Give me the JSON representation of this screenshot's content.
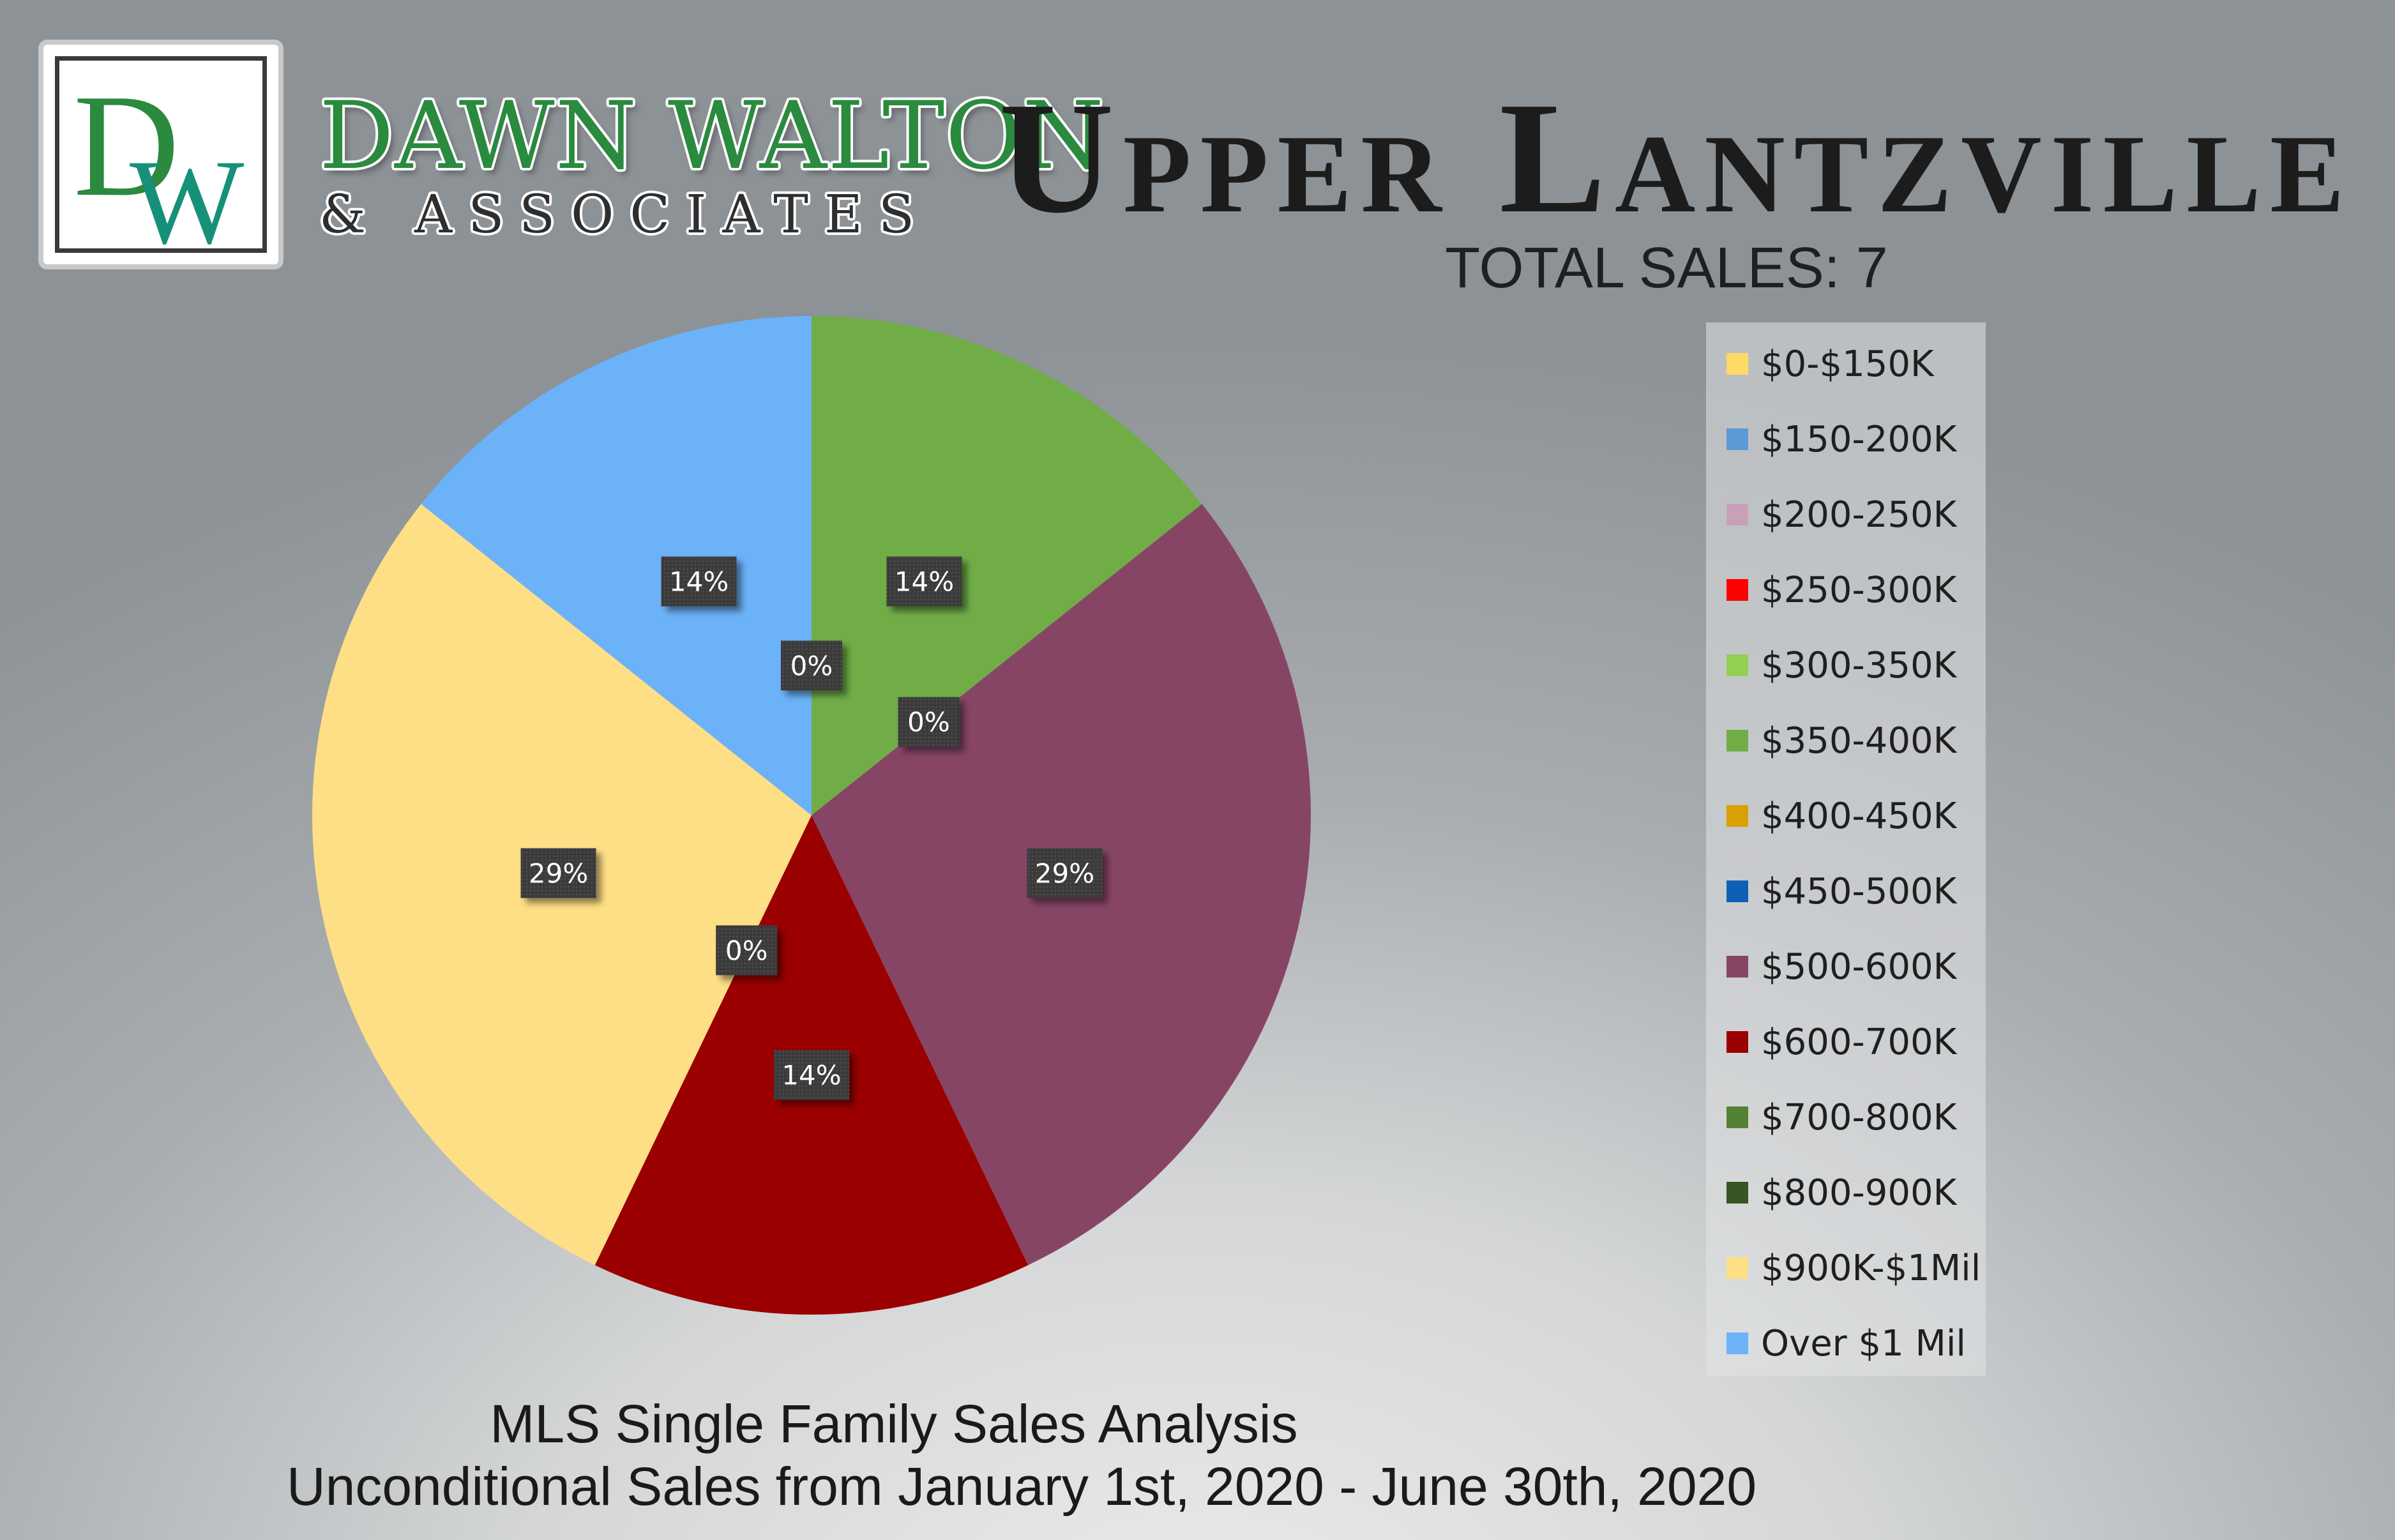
{
  "brand": {
    "logo_monogram_left": "D",
    "logo_monogram_right": "W",
    "name_line1": "DAWN WALTON",
    "name_line2": "& ASSOCIATES",
    "primary_color": "#2a8a3e",
    "secondary_color": "#17907a"
  },
  "header": {
    "title": "Upper Lantzville",
    "total_sales": "TOTAL SALES: 7"
  },
  "footer": {
    "line1": "MLS Single Family Sales Analysis",
    "line2": "Unconditional Sales from January 1st, 2020 - June 30th, 2020"
  },
  "chart_data": {
    "type": "pie",
    "title": "",
    "legend_position": "right",
    "categories": [
      "$0-$150K",
      "$150-200K",
      "$200-250K",
      "$250-300K",
      "$300-350K",
      "$350-400K",
      "$400-450K",
      "$450-500K",
      "$500-600K",
      "$600-700K",
      "$700-800K",
      "$800-900K",
      "$900K-$1Mil",
      "Over $1 Mil"
    ],
    "values": [
      0,
      0,
      0,
      0,
      0,
      14,
      0,
      0,
      29,
      14,
      0,
      0,
      29,
      14
    ],
    "counts": [
      0,
      0,
      0,
      0,
      0,
      1,
      0,
      0,
      2,
      1,
      0,
      0,
      2,
      1
    ],
    "colors": [
      "#ffd966",
      "#5b9bd5",
      "#c9a0b8",
      "#ff0000",
      "#92d050",
      "#70ad47",
      "#d9a000",
      "#0f5fb5",
      "#874566",
      "#9b0000",
      "#548235",
      "#375623",
      "#ffdf85",
      "#6cb2f9"
    ],
    "data_labels": [
      {
        "category": "$0-$150K",
        "text": "0%"
      },
      {
        "category": "$350-400K",
        "text": "14%"
      },
      {
        "category": "$400-450K",
        "text": "0%"
      },
      {
        "category": "$500-600K",
        "text": "29%"
      },
      {
        "category": "$600-700K",
        "text": "14%"
      },
      {
        "category": "$700-800K",
        "text": "0%"
      },
      {
        "category": "$900K-$1Mil",
        "text": "29%"
      },
      {
        "category": "Over $1 Mil",
        "text": "14%"
      }
    ]
  }
}
